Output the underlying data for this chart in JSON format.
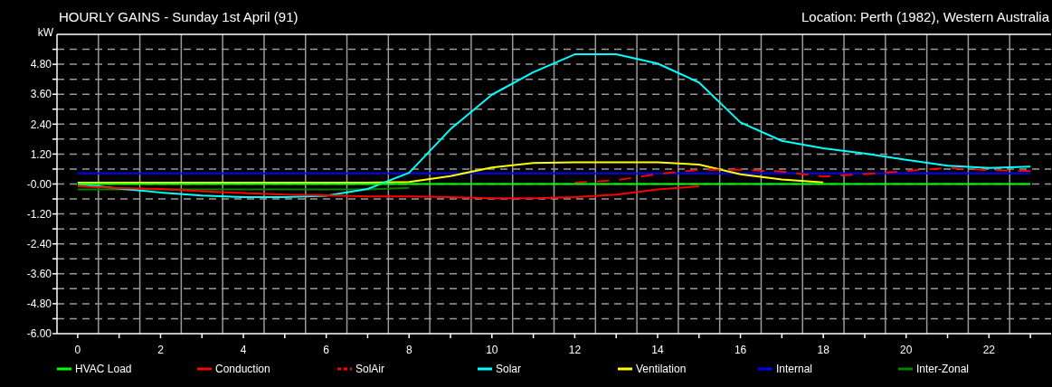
{
  "chart_data": {
    "type": "line",
    "title": "HOURLY GAINS - Sunday 1st April (91)",
    "subtitle": "Location: Perth (1982), Western Australia",
    "ylabel": "kW",
    "x": [
      0,
      1,
      2,
      3,
      4,
      5,
      6,
      7,
      8,
      9,
      10,
      11,
      12,
      13,
      14,
      15,
      16,
      17,
      18,
      19,
      20,
      21,
      22,
      23
    ],
    "xlim": [
      -0.5,
      23.5
    ],
    "xticks": [
      {
        "value": 0,
        "label": "0"
      },
      {
        "value": 1,
        "label": null
      },
      {
        "value": 2,
        "label": "2"
      },
      {
        "value": 3,
        "label": null
      },
      {
        "value": 4,
        "label": "4"
      },
      {
        "value": 5,
        "label": null
      },
      {
        "value": 6,
        "label": "6"
      },
      {
        "value": 7,
        "label": null
      },
      {
        "value": 8,
        "label": "8"
      },
      {
        "value": 9,
        "label": null
      },
      {
        "value": 10,
        "label": "10"
      },
      {
        "value": 11,
        "label": null
      },
      {
        "value": 12,
        "label": "12"
      },
      {
        "value": 13,
        "label": null
      },
      {
        "value": 14,
        "label": "14"
      },
      {
        "value": 15,
        "label": null
      },
      {
        "value": 16,
        "label": "16"
      },
      {
        "value": 17,
        "label": null
      },
      {
        "value": 18,
        "label": "18"
      },
      {
        "value": 19,
        "label": null
      },
      {
        "value": 20,
        "label": "20"
      },
      {
        "value": 21,
        "label": null
      },
      {
        "value": 22,
        "label": "22"
      },
      {
        "value": 23,
        "label": null
      }
    ],
    "ylim": [
      -6,
      6
    ],
    "yticks": [
      {
        "value": -6,
        "label": "-6.00"
      },
      {
        "value": -5.4,
        "label": null
      },
      {
        "value": -4.8,
        "label": "-4.80"
      },
      {
        "value": -4.2,
        "label": null
      },
      {
        "value": -3.6,
        "label": "-3.60"
      },
      {
        "value": -3,
        "label": null
      },
      {
        "value": -2.4,
        "label": "-2.40"
      },
      {
        "value": -1.8,
        "label": null
      },
      {
        "value": -1.2,
        "label": "-1.20"
      },
      {
        "value": -0.6,
        "label": null
      },
      {
        "value": 0,
        "label": "-0.00"
      },
      {
        "value": 0.6,
        "label": null
      },
      {
        "value": 1.2,
        "label": "1.20"
      },
      {
        "value": 1.8,
        "label": null
      },
      {
        "value": 2.4,
        "label": "2.40"
      },
      {
        "value": 3,
        "label": null
      },
      {
        "value": 3.6,
        "label": "3.60"
      },
      {
        "value": 4.2,
        "label": null
      },
      {
        "value": 4.8,
        "label": "4.80"
      },
      {
        "value": 5.4,
        "label": null
      }
    ],
    "grid": true,
    "legend": "bottom",
    "marker": "none",
    "series": [
      {
        "name": "HVAC Load",
        "color": "#00ff00",
        "line_style": "solid",
        "values": [
          0,
          0,
          0,
          0,
          0,
          0,
          0,
          0,
          0,
          0,
          0,
          0,
          0,
          0,
          0,
          0,
          0,
          0,
          0,
          0,
          0,
          0,
          0,
          0
        ]
      },
      {
        "name": "Conduction",
        "color": "#ff0000",
        "line_style": "solid",
        "values": [
          -0.09,
          -0.16,
          -0.2,
          -0.29,
          -0.36,
          -0.43,
          -0.45,
          -0.5,
          -0.5,
          -0.53,
          -0.57,
          -0.57,
          -0.53,
          -0.43,
          -0.22,
          -0.09,
          null,
          null,
          null,
          null,
          null,
          null,
          null,
          null
        ]
      },
      {
        "name": "SolAir",
        "color": "#ff0000",
        "line_style": "dashed",
        "values": [
          null,
          null,
          null,
          null,
          null,
          null,
          null,
          null,
          null,
          null,
          null,
          null,
          0.05,
          0.15,
          0.4,
          0.57,
          0.57,
          0.5,
          0.3,
          0.4,
          0.52,
          0.64,
          0.56,
          0.52
        ]
      },
      {
        "name": "Solar",
        "color": "#00ffff",
        "line_style": "solid",
        "values": [
          0,
          -0.18,
          -0.34,
          -0.46,
          -0.53,
          -0.53,
          -0.47,
          -0.2,
          0.45,
          2.2,
          3.58,
          4.48,
          5.2,
          5.2,
          4.83,
          4.07,
          2.47,
          1.73,
          1.43,
          1.22,
          0.97,
          0.73,
          0.64,
          0.7
        ]
      },
      {
        "name": "Ventilation",
        "color": "#ffff00",
        "line_style": "solid",
        "values": [
          0.05,
          0.05,
          0.05,
          0.05,
          0.05,
          0.05,
          0.05,
          0.05,
          0.08,
          0.32,
          0.66,
          0.84,
          0.87,
          0.87,
          0.87,
          0.78,
          0.39,
          0.18,
          0.06,
          null,
          null,
          null,
          null,
          null
        ]
      },
      {
        "name": "Internal",
        "color": "#0000ff",
        "line_style": "solid",
        "values": [
          0.43,
          0.43,
          0.43,
          0.43,
          0.43,
          0.43,
          0.43,
          0.43,
          0.43,
          0.43,
          0.43,
          0.43,
          0.43,
          0.43,
          0.43,
          0.43,
          0.43,
          0.43,
          0.43,
          0.43,
          0.43,
          0.43,
          0.43,
          0.43
        ]
      },
      {
        "name": "Inter-Zonal",
        "color": "#008000",
        "line_style": "solid",
        "values": [
          -0.22,
          -0.22,
          -0.22,
          -0.22,
          -0.22,
          -0.22,
          -0.22,
          -0.22,
          -0.15,
          null,
          null,
          null,
          null,
          null,
          null,
          null,
          null,
          null,
          null,
          null,
          null,
          null,
          null,
          null
        ]
      }
    ]
  }
}
